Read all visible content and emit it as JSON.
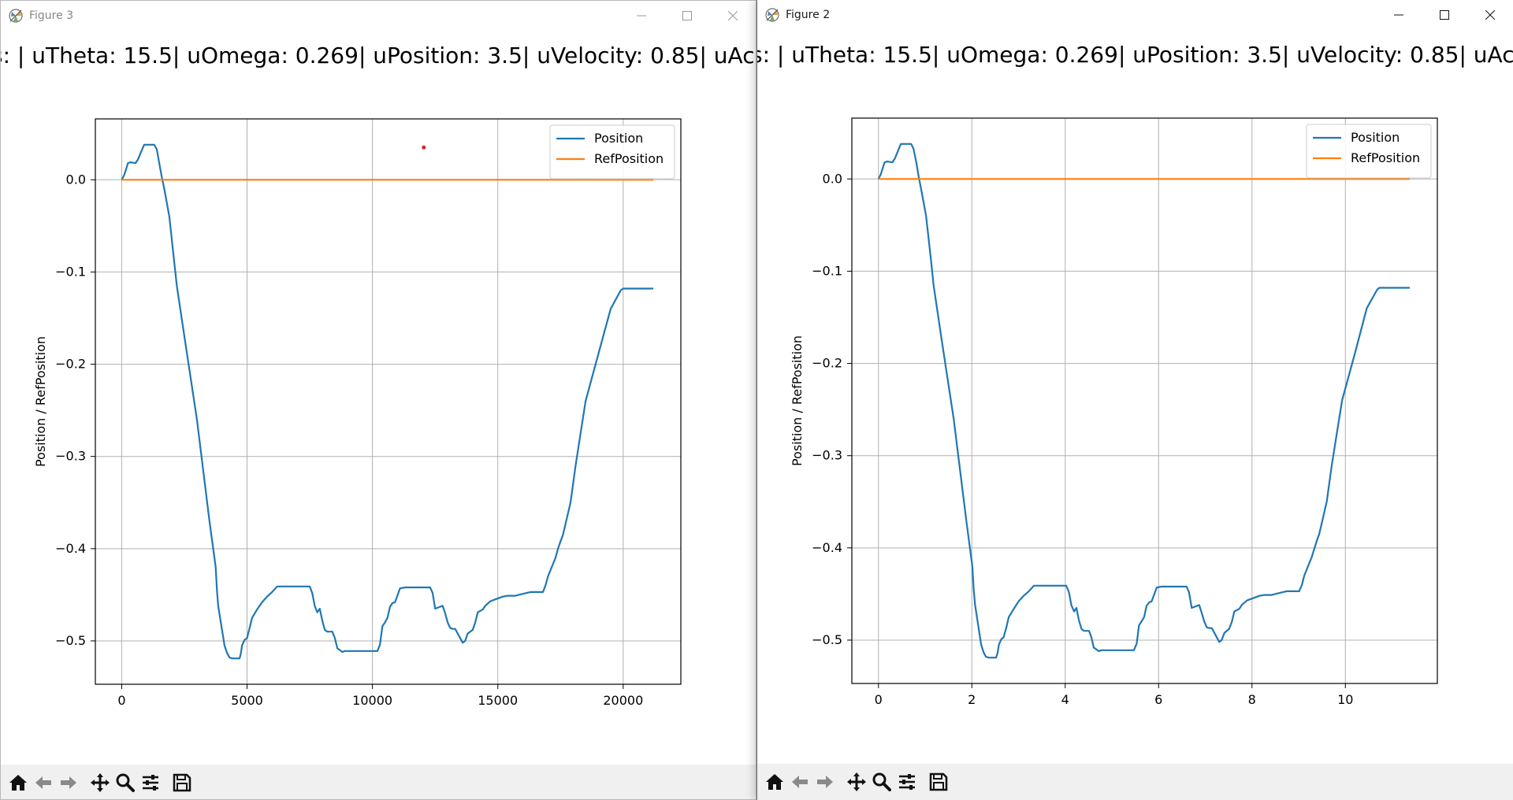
{
  "banner_text": "s: | uTheta: 15.5| uOmega: 0.269| uPosition: 3.5| uVelocity: 0.85| uAcc",
  "icons": {
    "app": "matplotlib-icon",
    "minimize": "minimize-icon",
    "maximize": "maximize-icon",
    "close": "close-icon",
    "toolbar": [
      "home-icon",
      "back-arrow-icon",
      "forward-arrow-icon",
      "pan-move-icon",
      "zoom-magnifier-icon",
      "configure-subplots-icon",
      "save-floppy-icon"
    ]
  },
  "colors": {
    "position_series": "#1f77b4",
    "ref_series": "#ff7f0e",
    "marker": "#d62728"
  },
  "windows": [
    {
      "id": "left",
      "title": "Figure 3",
      "active": false
    },
    {
      "id": "right",
      "title": "Figure 2",
      "active": true
    }
  ],
  "chart_data": [
    {
      "type": "line",
      "ylabel": "Position / RefPosition",
      "xlim": [
        -1050,
        22300
      ],
      "ylim": [
        -0.547,
        0.066
      ],
      "xticks": [
        0,
        5000,
        10000,
        15000,
        20000
      ],
      "xtick_labels": [
        "0",
        "5000",
        "10000",
        "15000",
        "20000"
      ],
      "yticks": [
        0.0,
        -0.1,
        -0.2,
        -0.3,
        -0.4,
        -0.5
      ],
      "ytick_labels": [
        "0.0",
        "−0.1",
        "−0.2",
        "−0.3",
        "−0.4",
        "−0.5"
      ],
      "grid": true,
      "legend_position": "top-right",
      "annotation_point": {
        "x": 12050,
        "y": 0.035
      },
      "series": [
        {
          "name": "Position",
          "x": [
            0,
            100,
            250,
            350,
            550,
            650,
            800,
            900,
            1300,
            1400,
            1500,
            1600,
            1700,
            1900,
            2100,
            2200,
            2500,
            3000,
            3500,
            3750,
            3800,
            3850,
            4100,
            4200,
            4300,
            4400,
            4700,
            4750,
            4800,
            4900,
            5000,
            5100,
            5200,
            5400,
            5600,
            5800,
            6000,
            6200,
            7500,
            7600,
            7700,
            7800,
            7900,
            8000,
            8100,
            8200,
            8400,
            8500,
            8600,
            8800,
            8900,
            9000,
            10200,
            10300,
            10400,
            10500,
            10600,
            10700,
            10800,
            10900,
            11100,
            11300,
            11400,
            12300,
            12400,
            12500,
            12800,
            12900,
            13000,
            13100,
            13200,
            13300,
            13600,
            13700,
            13800,
            14000,
            14100,
            14200,
            14400,
            14500,
            14700,
            14900,
            15200,
            15400,
            15500,
            15700,
            16000,
            16300,
            16800,
            16900,
            17000,
            17300,
            17400,
            17500,
            17600,
            17900,
            18100,
            18500,
            19000,
            19500,
            19900,
            20000,
            20100,
            21200
          ],
          "y": [
            0.0,
            0.005,
            0.018,
            0.019,
            0.018,
            0.022,
            0.032,
            0.038,
            0.038,
            0.033,
            0.018,
            0.003,
            -0.01,
            -0.04,
            -0.09,
            -0.115,
            -0.17,
            -0.26,
            -0.37,
            -0.42,
            -0.445,
            -0.462,
            -0.505,
            -0.513,
            -0.518,
            -0.519,
            -0.519,
            -0.514,
            -0.505,
            -0.499,
            -0.497,
            -0.486,
            -0.475,
            -0.466,
            -0.458,
            -0.452,
            -0.447,
            -0.441,
            -0.441,
            -0.448,
            -0.462,
            -0.469,
            -0.465,
            -0.478,
            -0.488,
            -0.49,
            -0.49,
            -0.497,
            -0.508,
            -0.512,
            -0.511,
            -0.511,
            -0.511,
            -0.504,
            -0.484,
            -0.48,
            -0.475,
            -0.463,
            -0.459,
            -0.458,
            -0.443,
            -0.442,
            -0.442,
            -0.442,
            -0.448,
            -0.465,
            -0.462,
            -0.47,
            -0.48,
            -0.486,
            -0.487,
            -0.487,
            -0.502,
            -0.5,
            -0.492,
            -0.488,
            -0.48,
            -0.469,
            -0.466,
            -0.462,
            -0.457,
            -0.455,
            -0.452,
            -0.451,
            -0.451,
            -0.451,
            -0.449,
            -0.447,
            -0.447,
            -0.44,
            -0.43,
            -0.41,
            -0.4,
            -0.392,
            -0.385,
            -0.35,
            -0.31,
            -0.24,
            -0.19,
            -0.14,
            -0.12,
            -0.118,
            -0.118,
            -0.118
          ]
        },
        {
          "name": "RefPosition",
          "x": [
            0,
            21200
          ],
          "y": [
            0.0,
            0.0
          ]
        }
      ]
    },
    {
      "type": "line",
      "ylabel": "Position / RefPosition",
      "xlim": [
        -0.57,
        11.97
      ],
      "ylim": [
        -0.547,
        0.066
      ],
      "xticks": [
        0,
        2,
        4,
        6,
        8,
        10
      ],
      "xtick_labels": [
        "0",
        "2",
        "4",
        "6",
        "8",
        "10"
      ],
      "yticks": [
        0.0,
        -0.1,
        -0.2,
        -0.3,
        -0.4,
        -0.5
      ],
      "ytick_labels": [
        "0.0",
        "−0.1",
        "−0.2",
        "−0.3",
        "−0.4",
        "−0.5"
      ],
      "grid": true,
      "legend_position": "top-right",
      "series": [
        {
          "name": "Position",
          "x": [
            0,
            0.05,
            0.13,
            0.19,
            0.3,
            0.35,
            0.43,
            0.48,
            0.7,
            0.75,
            0.81,
            0.86,
            0.91,
            1.02,
            1.13,
            1.18,
            1.34,
            1.61,
            1.88,
            2.01,
            2.04,
            2.07,
            2.2,
            2.25,
            2.3,
            2.36,
            2.52,
            2.55,
            2.58,
            2.63,
            2.68,
            2.74,
            2.79,
            2.9,
            3.0,
            3.11,
            3.22,
            3.33,
            4.02,
            4.08,
            4.13,
            4.19,
            4.24,
            4.29,
            4.35,
            4.4,
            4.51,
            4.56,
            4.61,
            4.72,
            4.77,
            4.83,
            5.47,
            5.53,
            5.58,
            5.63,
            5.69,
            5.74,
            5.8,
            5.85,
            5.96,
            6.06,
            6.12,
            6.6,
            6.65,
            6.71,
            6.87,
            6.92,
            6.98,
            7.03,
            7.08,
            7.14,
            7.3,
            7.35,
            7.41,
            7.51,
            7.57,
            7.62,
            7.73,
            7.78,
            7.89,
            8.0,
            8.16,
            8.26,
            8.32,
            8.42,
            8.58,
            8.74,
            9.01,
            9.07,
            9.12,
            9.28,
            9.34,
            9.39,
            9.44,
            9.6,
            9.71,
            9.93,
            10.2,
            10.46,
            10.68,
            10.73,
            10.79,
            11.38
          ],
          "y": [
            0.0,
            0.005,
            0.018,
            0.019,
            0.018,
            0.022,
            0.032,
            0.038,
            0.038,
            0.033,
            0.018,
            0.003,
            -0.01,
            -0.04,
            -0.09,
            -0.115,
            -0.17,
            -0.26,
            -0.37,
            -0.42,
            -0.445,
            -0.462,
            -0.505,
            -0.513,
            -0.518,
            -0.519,
            -0.519,
            -0.514,
            -0.505,
            -0.499,
            -0.497,
            -0.486,
            -0.475,
            -0.466,
            -0.458,
            -0.452,
            -0.447,
            -0.441,
            -0.441,
            -0.448,
            -0.462,
            -0.469,
            -0.465,
            -0.478,
            -0.488,
            -0.49,
            -0.49,
            -0.497,
            -0.508,
            -0.512,
            -0.511,
            -0.511,
            -0.511,
            -0.504,
            -0.484,
            -0.48,
            -0.475,
            -0.463,
            -0.459,
            -0.458,
            -0.443,
            -0.442,
            -0.442,
            -0.442,
            -0.448,
            -0.465,
            -0.462,
            -0.47,
            -0.48,
            -0.486,
            -0.487,
            -0.487,
            -0.502,
            -0.5,
            -0.492,
            -0.488,
            -0.48,
            -0.469,
            -0.466,
            -0.462,
            -0.457,
            -0.455,
            -0.452,
            -0.451,
            -0.451,
            -0.451,
            -0.449,
            -0.447,
            -0.447,
            -0.44,
            -0.43,
            -0.41,
            -0.4,
            -0.392,
            -0.385,
            -0.35,
            -0.31,
            -0.24,
            -0.19,
            -0.14,
            -0.12,
            -0.118,
            -0.118,
            -0.118
          ]
        },
        {
          "name": "RefPosition",
          "x": [
            0,
            11.38
          ],
          "y": [
            0.0,
            0.0
          ]
        }
      ]
    }
  ]
}
